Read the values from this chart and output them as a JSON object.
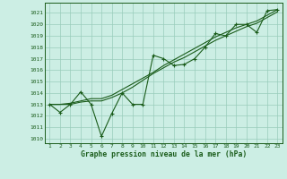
{
  "x": [
    1,
    2,
    3,
    4,
    5,
    6,
    7,
    8,
    9,
    10,
    11,
    12,
    13,
    14,
    15,
    16,
    17,
    18,
    19,
    20,
    21,
    22,
    23
  ],
  "line1": [
    1013.0,
    1012.3,
    1013.0,
    1014.1,
    1013.0,
    1010.2,
    1012.2,
    1014.0,
    1013.0,
    1013.0,
    1017.3,
    1017.0,
    1016.4,
    1016.5,
    1017.0,
    1018.0,
    1019.2,
    1019.0,
    1020.0,
    1020.0,
    1019.3,
    1021.2,
    1021.3
  ],
  "line2": [
    1013.0,
    1013.0,
    1013.0,
    1013.2,
    1013.3,
    1013.3,
    1013.6,
    1014.0,
    1014.5,
    1015.1,
    1015.7,
    1016.2,
    1016.7,
    1017.1,
    1017.6,
    1018.1,
    1018.6,
    1019.0,
    1019.4,
    1019.8,
    1020.1,
    1020.6,
    1021.1
  ],
  "line3": [
    1013.0,
    1013.0,
    1013.1,
    1013.3,
    1013.5,
    1013.5,
    1013.8,
    1014.3,
    1014.8,
    1015.3,
    1015.8,
    1016.4,
    1016.9,
    1017.4,
    1017.9,
    1018.4,
    1018.9,
    1019.3,
    1019.7,
    1020.0,
    1020.3,
    1020.8,
    1021.3
  ],
  "bg_color": "#cceee4",
  "grid_color": "#99ccbb",
  "line_color": "#1a5c1a",
  "ylabel_vals": [
    1010,
    1011,
    1012,
    1013,
    1014,
    1015,
    1016,
    1017,
    1018,
    1019,
    1020,
    1021
  ],
  "xlabel": "Graphe pression niveau de la mer (hPa)",
  "ylim": [
    1009.6,
    1021.9
  ],
  "xlim": [
    0.5,
    23.5
  ]
}
